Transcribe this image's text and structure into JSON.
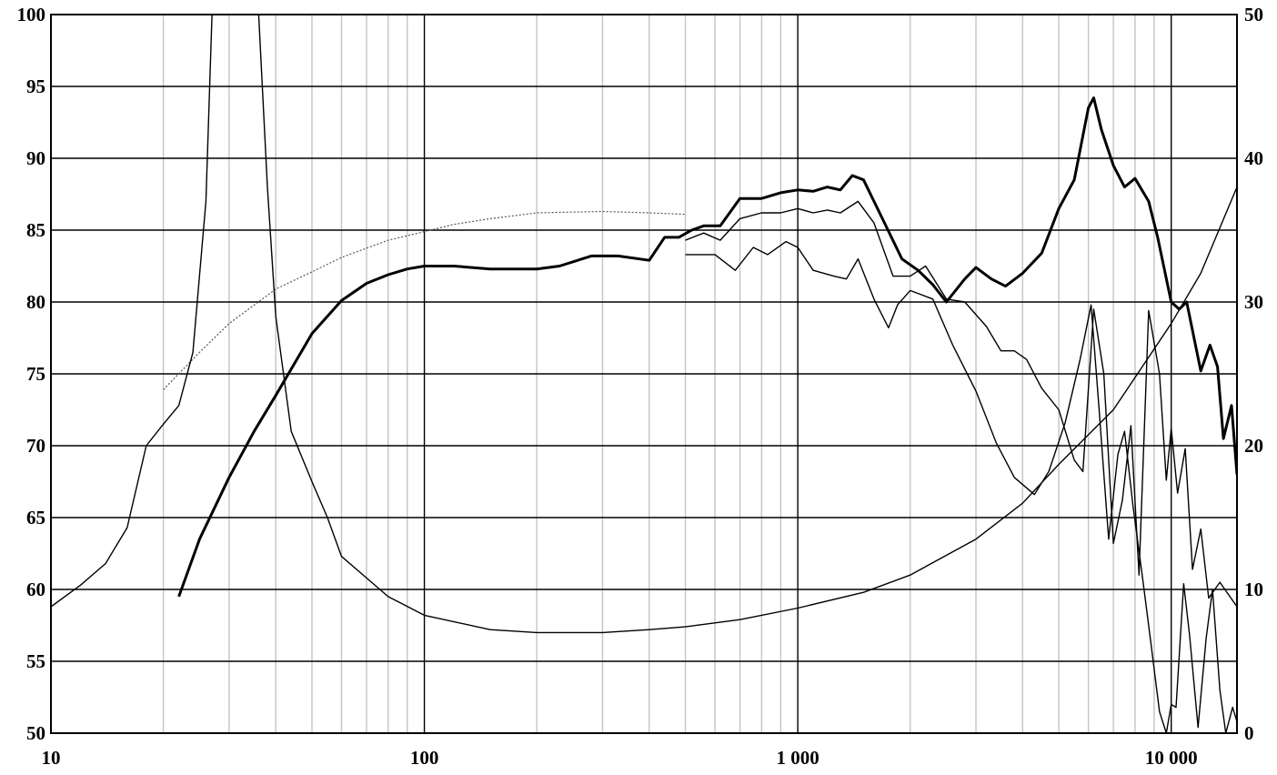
{
  "chart_data": {
    "type": "line",
    "title": "",
    "xlabel": "",
    "ylabel": "",
    "y2label": "",
    "x_scale": "log",
    "xlim": [
      10,
      15000
    ],
    "ylim": [
      50,
      100
    ],
    "y2lim": [
      0,
      50
    ],
    "grid": true,
    "legend": "none",
    "x_ticks": [
      {
        "value": 10,
        "label": "10"
      },
      {
        "value": 100,
        "label": "100"
      },
      {
        "value": 1000,
        "label": "1 000"
      },
      {
        "value": 10000,
        "label": "10 000"
      }
    ],
    "y_ticks": [
      "50",
      "55",
      "60",
      "65",
      "70",
      "75",
      "80",
      "85",
      "90",
      "95",
      "100"
    ],
    "y2_ticks": [
      "0",
      "10",
      "20",
      "30",
      "40",
      "50"
    ],
    "series": [
      {
        "id": "spl-axis",
        "axis": "left",
        "stroke": "#000000",
        "width": 3,
        "dash": "",
        "points": [
          [
            22,
            59.5
          ],
          [
            25,
            63.5
          ],
          [
            30,
            67.8
          ],
          [
            35,
            71
          ],
          [
            40,
            73.5
          ],
          [
            50,
            77.8
          ],
          [
            60,
            80.1
          ],
          [
            70,
            81.3
          ],
          [
            80,
            81.9
          ],
          [
            90,
            82.3
          ],
          [
            100,
            82.5
          ],
          [
            120,
            82.5
          ],
          [
            150,
            82.3
          ],
          [
            200,
            82.3
          ],
          [
            230,
            82.5
          ],
          [
            280,
            83.2
          ],
          [
            330,
            83.2
          ],
          [
            400,
            82.9
          ],
          [
            440,
            84.5
          ],
          [
            480,
            84.5
          ],
          [
            520,
            85.0
          ],
          [
            560,
            85.3
          ],
          [
            620,
            85.3
          ],
          [
            700,
            87.2
          ],
          [
            800,
            87.2
          ],
          [
            900,
            87.6
          ],
          [
            1000,
            87.8
          ],
          [
            1100,
            87.7
          ],
          [
            1200,
            88.0
          ],
          [
            1300,
            87.8
          ],
          [
            1400,
            88.8
          ],
          [
            1500,
            88.5
          ],
          [
            1700,
            85.6
          ],
          [
            1900,
            83.0
          ],
          [
            2100,
            82.2
          ],
          [
            2300,
            81.2
          ],
          [
            2500,
            80.0
          ],
          [
            2800,
            81.6
          ],
          [
            3000,
            82.4
          ],
          [
            3300,
            81.6
          ],
          [
            3600,
            81.1
          ],
          [
            4000,
            82.0
          ],
          [
            4500,
            83.4
          ],
          [
            5000,
            86.5
          ],
          [
            5500,
            88.5
          ],
          [
            6000,
            93.5
          ],
          [
            6200,
            94.2
          ],
          [
            6500,
            92.0
          ],
          [
            7000,
            89.5
          ],
          [
            7500,
            88.0
          ],
          [
            8000,
            88.6
          ],
          [
            8700,
            87.0
          ],
          [
            9200,
            84.5
          ],
          [
            10000,
            80.0
          ],
          [
            10500,
            79.5
          ],
          [
            11000,
            80.0
          ],
          [
            12000,
            75.2
          ],
          [
            12700,
            77.0
          ],
          [
            13300,
            75.5
          ],
          [
            13800,
            70.5
          ],
          [
            14500,
            72.8
          ],
          [
            15000,
            68.0
          ]
        ]
      },
      {
        "id": "spl-15deg",
        "axis": "left",
        "stroke": "#000000",
        "width": 1.4,
        "dash": "",
        "points": [
          [
            500,
            84.3
          ],
          [
            560,
            84.8
          ],
          [
            620,
            84.3
          ],
          [
            700,
            85.8
          ],
          [
            800,
            86.2
          ],
          [
            900,
            86.2
          ],
          [
            1000,
            86.5
          ],
          [
            1100,
            86.2
          ],
          [
            1200,
            86.4
          ],
          [
            1300,
            86.2
          ],
          [
            1450,
            87.0
          ],
          [
            1600,
            85.5
          ],
          [
            1800,
            81.8
          ],
          [
            2000,
            81.8
          ],
          [
            2200,
            82.5
          ],
          [
            2500,
            80.2
          ],
          [
            2800,
            80.0
          ],
          [
            3200,
            78.3
          ],
          [
            3500,
            76.6
          ],
          [
            3800,
            76.6
          ],
          [
            4100,
            76.0
          ],
          [
            4500,
            74.0
          ],
          [
            5000,
            72.5
          ],
          [
            5500,
            69.0
          ],
          [
            5800,
            68.2
          ],
          [
            6200,
            79.5
          ],
          [
            6600,
            75.0
          ],
          [
            7000,
            63.2
          ],
          [
            7400,
            66.2
          ],
          [
            7800,
            71.4
          ],
          [
            8200,
            61.0
          ],
          [
            8700,
            79.4
          ],
          [
            9300,
            75.0
          ],
          [
            9700,
            67.6
          ],
          [
            10000,
            71.2
          ],
          [
            10400,
            66.7
          ],
          [
            10900,
            69.8
          ],
          [
            11400,
            61.4
          ],
          [
            12000,
            64.2
          ],
          [
            12600,
            59.4
          ],
          [
            13500,
            60.5
          ],
          [
            15000,
            58.8
          ]
        ]
      },
      {
        "id": "spl-30deg",
        "axis": "left",
        "stroke": "#000000",
        "width": 1.4,
        "dash": "",
        "points": [
          [
            500,
            83.3
          ],
          [
            600,
            83.3
          ],
          [
            680,
            82.2
          ],
          [
            760,
            83.8
          ],
          [
            830,
            83.3
          ],
          [
            930,
            84.2
          ],
          [
            1000,
            83.8
          ],
          [
            1100,
            82.2
          ],
          [
            1250,
            81.8
          ],
          [
            1350,
            81.6
          ],
          [
            1450,
            83.0
          ],
          [
            1600,
            80.2
          ],
          [
            1750,
            78.2
          ],
          [
            1850,
            79.8
          ],
          [
            2000,
            80.8
          ],
          [
            2300,
            80.2
          ],
          [
            2600,
            77.0
          ],
          [
            3000,
            73.8
          ],
          [
            3400,
            70.2
          ],
          [
            3800,
            67.8
          ],
          [
            4300,
            66.6
          ],
          [
            4700,
            68.2
          ],
          [
            5200,
            71.6
          ],
          [
            5700,
            76.0
          ],
          [
            6100,
            79.8
          ],
          [
            6400,
            72.8
          ],
          [
            6800,
            63.5
          ],
          [
            7200,
            69.4
          ],
          [
            7500,
            71.0
          ],
          [
            7900,
            65.8
          ],
          [
            8400,
            60.6
          ],
          [
            8800,
            56.5
          ],
          [
            9300,
            51.5
          ],
          [
            9700,
            50.0
          ],
          [
            10000,
            52.0
          ],
          [
            10300,
            51.8
          ],
          [
            10800,
            60.4
          ],
          [
            11200,
            56.8
          ],
          [
            11800,
            50.4
          ],
          [
            12400,
            56.6
          ],
          [
            12900,
            60.0
          ],
          [
            13500,
            53.0
          ],
          [
            14000,
            50.0
          ],
          [
            14600,
            51.8
          ],
          [
            15000,
            50.8
          ]
        ]
      },
      {
        "id": "spl-lowfreq-dotted",
        "axis": "left",
        "stroke": "#555555",
        "width": 1.2,
        "dash": "2,2",
        "points": [
          [
            20,
            73.9
          ],
          [
            25,
            76.5
          ],
          [
            30,
            78.5
          ],
          [
            40,
            80.9
          ],
          [
            50,
            82.1
          ],
          [
            60,
            83.1
          ],
          [
            80,
            84.3
          ],
          [
            100,
            84.9
          ],
          [
            120,
            85.4
          ],
          [
            150,
            85.8
          ],
          [
            200,
            86.2
          ],
          [
            300,
            86.3
          ],
          [
            400,
            86.2
          ],
          [
            500,
            86.1
          ]
        ]
      },
      {
        "id": "impedance",
        "axis": "right",
        "stroke": "#000000",
        "width": 1.4,
        "dash": "",
        "points": [
          [
            10,
            8.8
          ],
          [
            12,
            10.3
          ],
          [
            14,
            11.8
          ],
          [
            16,
            14.3
          ],
          [
            18,
            20
          ],
          [
            20,
            21.5
          ],
          [
            22,
            22.8
          ],
          [
            24,
            26.5
          ],
          [
            26,
            37
          ],
          [
            27,
            50
          ],
          [
            29,
            50
          ],
          [
            32,
            50
          ],
          [
            34,
            50
          ],
          [
            36,
            50
          ],
          [
            38,
            38
          ],
          [
            40,
            29
          ],
          [
            44,
            21
          ],
          [
            50,
            17.5
          ],
          [
            55,
            15
          ],
          [
            60,
            12.3
          ],
          [
            70,
            10.8
          ],
          [
            80,
            9.5
          ],
          [
            100,
            8.2
          ],
          [
            150,
            7.2
          ],
          [
            200,
            7.0
          ],
          [
            300,
            7.0
          ],
          [
            400,
            7.2
          ],
          [
            500,
            7.4
          ],
          [
            700,
            7.9
          ],
          [
            1000,
            8.7
          ],
          [
            1500,
            9.8
          ],
          [
            2000,
            11.0
          ],
          [
            3000,
            13.5
          ],
          [
            4000,
            16.0
          ],
          [
            5000,
            18.7
          ],
          [
            7000,
            22.5
          ],
          [
            10000,
            28.5
          ],
          [
            12000,
            32
          ],
          [
            15000,
            38
          ]
        ]
      }
    ]
  }
}
